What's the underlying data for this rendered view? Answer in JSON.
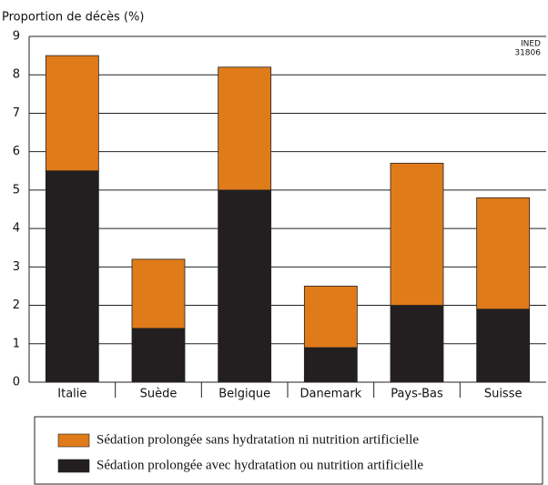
{
  "chart_data": {
    "type": "stacked_bar",
    "y_label": "Proportion de décès  (%)",
    "annotation": [
      "INED",
      "31806"
    ],
    "categories": [
      "Italie",
      "Suède",
      "Belgique",
      "Danemark",
      "Pays-Bas",
      "Suisse"
    ],
    "series": [
      {
        "name": "Sédation prolongée avec hydratation ou nutrition artificielle",
        "color": "#231f20",
        "values": [
          5.5,
          1.4,
          5.0,
          0.9,
          2.0,
          1.9
        ]
      },
      {
        "name": "Sédation prolongée sans hydratation ni nutrition artificielle",
        "color": "#e07b1a",
        "values": [
          3.0,
          1.8,
          3.2,
          1.6,
          3.7,
          2.9
        ]
      }
    ],
    "ylim": [
      0,
      9
    ],
    "yticks": [
      0,
      1,
      2,
      3,
      4,
      5,
      6,
      7,
      8,
      9
    ],
    "grid": true
  }
}
